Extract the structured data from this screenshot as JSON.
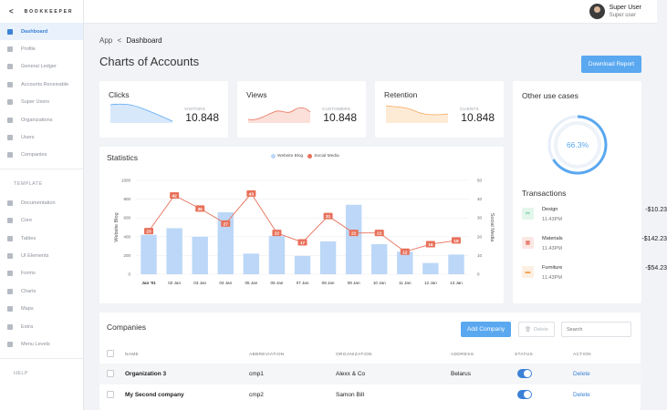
{
  "brand": {
    "name": "BOOKKEEPER",
    "back_glyph": "<"
  },
  "sidebar": {
    "items": [
      {
        "label": "Dashboard",
        "icon": "dashboard-icon",
        "active": true
      },
      {
        "label": "Profile",
        "icon": "profile-icon"
      },
      {
        "label": "General Ledger",
        "icon": "ledger-icon"
      },
      {
        "label": "Accounts Receivable",
        "icon": "receivable-icon"
      },
      {
        "label": "Super Users",
        "icon": "super-users-icon"
      },
      {
        "label": "Organizations",
        "icon": "organizations-icon"
      },
      {
        "label": "Users",
        "icon": "users-icon"
      },
      {
        "label": "Companies",
        "icon": "companies-icon"
      }
    ],
    "template_heading": "TEMPLATE",
    "template_items": [
      {
        "label": "Documentation",
        "icon": "documentation-icon"
      },
      {
        "label": "Core",
        "icon": "core-icon"
      },
      {
        "label": "Tables",
        "icon": "tables-icon"
      },
      {
        "label": "UI Elements",
        "icon": "ui-elements-icon"
      },
      {
        "label": "Forms",
        "icon": "forms-icon"
      },
      {
        "label": "Charts",
        "icon": "charts-icon"
      },
      {
        "label": "Maps",
        "icon": "maps-icon"
      },
      {
        "label": "Extra",
        "icon": "extra-icon"
      },
      {
        "label": "Menu Levels",
        "icon": "menu-levels-icon"
      }
    ],
    "help_heading": "HELP"
  },
  "user": {
    "name": "Super User",
    "role": "Super user"
  },
  "breadcrumb": {
    "root": "App",
    "sep": "<",
    "current": "Dashboard"
  },
  "page_title": "Charts of Accounts",
  "download_button": "Download Report",
  "stats": [
    {
      "label": "Clicks",
      "sub": "VISITORS",
      "value": "10.848",
      "color": "#5aa8f0"
    },
    {
      "label": "Views",
      "sub": "CUSTOMERS",
      "value": "10.848",
      "color": "#e8705a"
    },
    {
      "label": "Retention",
      "sub": "CLIENTS",
      "value": "10.848",
      "color": "#f5a95a"
    }
  ],
  "statistics": {
    "title": "Statistics",
    "legend": [
      "Website Blog",
      "Social Media"
    ],
    "colors": {
      "bar": "#bcd7f7",
      "line": "#e8705a"
    }
  },
  "chart_data": {
    "type": "bar",
    "categories": [
      "Jan '01",
      "02 Jan",
      "03 Jan",
      "04 Jan",
      "05 Jan",
      "06 Jan",
      "07 Jan",
      "08 Jan",
      "09 Jan",
      "10 Jan",
      "11 Jan",
      "12 Jan",
      "13 Jan"
    ],
    "series": [
      {
        "name": "Website Blog",
        "type": "bar",
        "axis": "left",
        "values": [
          420,
          490,
          400,
          660,
          220,
          410,
          195,
          350,
          740,
          320,
          240,
          120,
          210
        ]
      },
      {
        "name": "Social Media",
        "type": "line",
        "axis": "right",
        "values": [
          23,
          42,
          35,
          27,
          43,
          22,
          17,
          31,
          22,
          22,
          12,
          16,
          18
        ]
      }
    ],
    "xlabel": "",
    "ylabel": "Website Blog",
    "y2label": "Social Media",
    "ylim": [
      0,
      1000
    ],
    "y2lim": [
      0,
      50
    ],
    "yticks": [
      0,
      200,
      400,
      600,
      800,
      1000
    ],
    "y2ticks": [
      0,
      10,
      20,
      30,
      40,
      50
    ],
    "grid": true,
    "legend": "top-center"
  },
  "other_use": {
    "title": "Other use cases",
    "percent_label": "66.3%",
    "percent": 66.3
  },
  "transactions": {
    "title": "Transactions",
    "items": [
      {
        "name": "Design",
        "time": "11.43PM",
        "amount": "-$10.23",
        "icon": "design-icon",
        "glyph": "✂",
        "color": "#2fb36b",
        "bg": "#e3f6eb"
      },
      {
        "name": "Materials",
        "time": "11.43PM",
        "amount": "-$142.23",
        "icon": "materials-icon",
        "glyph": "▦",
        "color": "#e05a4a",
        "bg": "#fbe7e4"
      },
      {
        "name": "Furniture",
        "time": "11.43PM",
        "amount": "-$54.23",
        "icon": "furniture-icon",
        "glyph": "▬",
        "color": "#f0a04b",
        "bg": "#fdf0e2"
      }
    ]
  },
  "companies": {
    "title": "Companies",
    "add_button": "Add Company",
    "delete_button": "Delete",
    "search_placeholder": "Search",
    "columns": [
      "NAME",
      "ABBREVIATION",
      "ORGANIZATION",
      "ADDRESS",
      "STATUS",
      "ACTION"
    ],
    "rows": [
      {
        "name": "Organization 3",
        "abbr": "cmp1",
        "org": "Alexx & Co",
        "address": "Belarus",
        "status": true,
        "action": "Delete"
      },
      {
        "name": "My Second company",
        "abbr": "cmp2",
        "org": "Samon Bill",
        "address": "",
        "status": true,
        "action": "Delete"
      }
    ]
  }
}
